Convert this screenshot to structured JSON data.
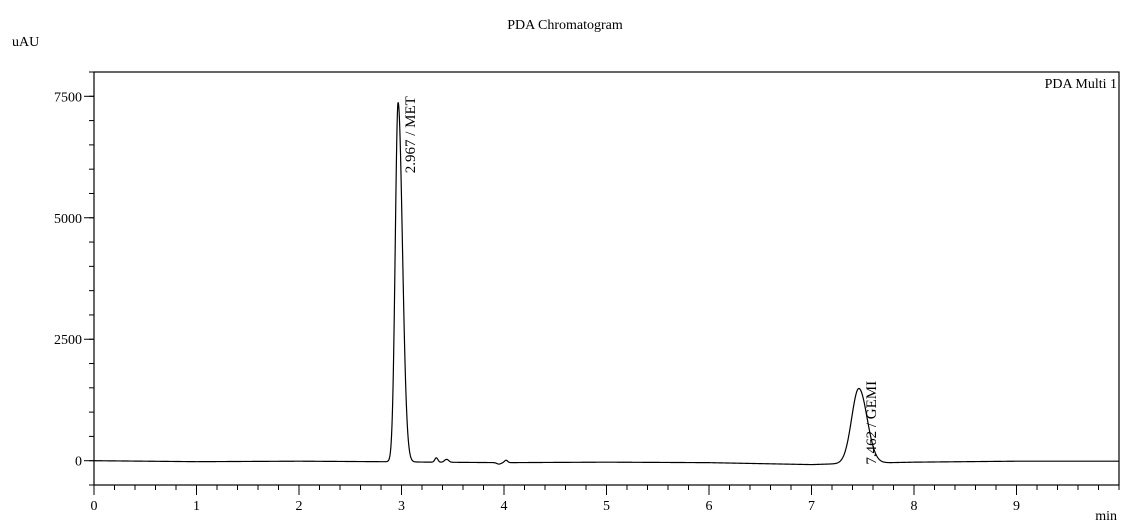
{
  "chart_data": {
    "type": "line",
    "title": "PDA Chromatogram",
    "ylabel": "uAU",
    "xlabel": "min",
    "legend": "PDA Multi 1",
    "legend_position": "top-right",
    "xlim": [
      0,
      10
    ],
    "ylim": [
      -500,
      8000
    ],
    "x_ticks": [
      0,
      1,
      2,
      3,
      4,
      5,
      6,
      7,
      8,
      9
    ],
    "x_tick_labels": [
      "0",
      "1",
      "2",
      "3",
      "4",
      "5",
      "6",
      "7",
      "8",
      "9"
    ],
    "x_minor_step": 0.2,
    "y_ticks": [
      0,
      2500,
      5000,
      7500
    ],
    "y_tick_labels": [
      "0",
      "2500",
      "5000",
      "7500"
    ],
    "y_minor_step": 500,
    "grid": false,
    "series": [
      {
        "color": "#000000",
        "baseline": [
          [
            0,
            0
          ],
          [
            1,
            -20
          ],
          [
            2,
            -10
          ],
          [
            2.8,
            -20
          ],
          [
            3.3,
            -30
          ],
          [
            4,
            -40
          ],
          [
            5,
            -30
          ],
          [
            6,
            -40
          ],
          [
            7,
            -80
          ],
          [
            7.3,
            -60
          ],
          [
            8,
            -30
          ],
          [
            9,
            -10
          ],
          [
            10,
            -10
          ]
        ],
        "peaks": [
          {
            "rt": 2.967,
            "height": 7400,
            "sigma_left": 0.028,
            "sigma_right": 0.042
          },
          {
            "rt": 3.34,
            "height": 90,
            "sigma_left": 0.015,
            "sigma_right": 0.015
          },
          {
            "rt": 3.44,
            "height": 60,
            "sigma_left": 0.02,
            "sigma_right": 0.02
          },
          {
            "rt": 3.95,
            "height": -30,
            "sigma_left": 0.02,
            "sigma_right": 0.02
          },
          {
            "rt": 4.02,
            "height": 50,
            "sigma_left": 0.015,
            "sigma_right": 0.015
          },
          {
            "rt": 7.462,
            "height": 1540,
            "sigma_left": 0.07,
            "sigma_right": 0.08
          }
        ]
      }
    ],
    "annotations": [
      {
        "text": "2.967 / MET",
        "x": 2.967,
        "y": 7400
      },
      {
        "text": "7.462 / GEMI",
        "x": 7.462,
        "y": 1540
      }
    ]
  }
}
